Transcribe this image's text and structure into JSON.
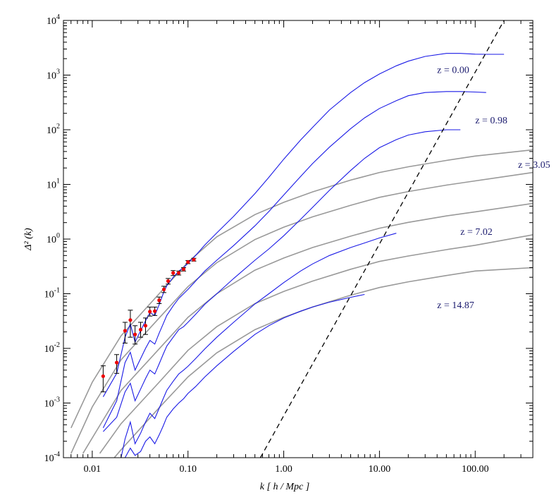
{
  "chart_data": {
    "type": "line",
    "xlabel": "k [ h / Mpc ]",
    "ylabel": "Δ² (k)",
    "xscale": "log",
    "yscale": "log",
    "xlim": [
      0.005,
      400
    ],
    "ylim": [
      0.0001,
      10000
    ],
    "x_tick_labels": [
      {
        "value": 0.01,
        "label": "0.01"
      },
      {
        "value": 0.1,
        "label": "0.10"
      },
      {
        "value": 1,
        "label": "1.00"
      },
      {
        "value": 10,
        "label": "10.00"
      },
      {
        "value": 100,
        "label": "100.00"
      }
    ],
    "y_tick_labels": [
      {
        "value": 0.0001,
        "mantissa": "10",
        "exp": "-4"
      },
      {
        "value": 0.001,
        "mantissa": "10",
        "exp": "-3"
      },
      {
        "value": 0.01,
        "mantissa": "10",
        "exp": "-2"
      },
      {
        "value": 0.1,
        "mantissa": "10",
        "exp": "-1"
      },
      {
        "value": 1,
        "mantissa": "10",
        "exp": "0"
      },
      {
        "value": 10,
        "mantissa": "10",
        "exp": "1"
      },
      {
        "value": 100,
        "mantissa": "10",
        "exp": "2"
      },
      {
        "value": 1000,
        "mantissa": "10",
        "exp": "3"
      },
      {
        "value": 10000,
        "mantissa": "10",
        "exp": "4"
      }
    ],
    "grid": false,
    "colors": {
      "simulation": "#1a1ae6",
      "linear": "#999999",
      "observations": "#ee0000",
      "label": "#1a1a6e",
      "nonlinear_scale": "#000000"
    },
    "series_labels": [
      {
        "text": "z =  0.00",
        "x": 40,
        "y": 1100
      },
      {
        "text": "z =  0.98",
        "x": 100,
        "y": 130
      },
      {
        "text": "z =  3.05",
        "x": 280,
        "y": 20
      },
      {
        "text": "z =  7.02",
        "x": 70,
        "y": 1.2
      },
      {
        "text": "z = 14.87",
        "x": 40,
        "y": 0.054
      }
    ],
    "linear_series": [
      {
        "x": [
          0.006,
          0.01,
          0.02,
          0.05,
          0.1,
          0.2,
          0.5,
          1,
          2,
          5,
          10,
          20,
          50,
          100,
          400
        ],
        "y": [
          0.00035,
          0.0024,
          0.017,
          0.1,
          0.38,
          1.1,
          2.8,
          4.7,
          7.3,
          12,
          16.5,
          21,
          27.5,
          33,
          43
        ]
      },
      {
        "x": [
          0.006,
          0.01,
          0.02,
          0.05,
          0.1,
          0.2,
          0.5,
          1,
          2,
          5,
          10,
          20,
          50,
          100,
          400
        ],
        "y": [
          0.00012,
          0.00085,
          0.0062,
          0.036,
          0.135,
          0.37,
          0.98,
          1.65,
          2.55,
          4.15,
          5.8,
          7.4,
          9.7,
          11.6,
          16.5
        ]
      },
      {
        "x": [
          0.008,
          0.01,
          0.02,
          0.05,
          0.1,
          0.2,
          0.5,
          1,
          2,
          5,
          10,
          20,
          50,
          100,
          400
        ],
        "y": [
          0.00012,
          0.00023,
          0.0017,
          0.0098,
          0.037,
          0.1,
          0.27,
          0.45,
          0.7,
          1.13,
          1.58,
          2.02,
          2.65,
          3.15,
          4.5
        ]
      },
      {
        "x": [
          0.012,
          0.02,
          0.05,
          0.1,
          0.2,
          0.5,
          1,
          2,
          5,
          10,
          20,
          50,
          100,
          400
        ],
        "y": [
          0.00012,
          0.00042,
          0.0024,
          0.0092,
          0.025,
          0.066,
          0.11,
          0.17,
          0.28,
          0.39,
          0.49,
          0.64,
          0.77,
          1.2
        ]
      },
      {
        "x": [
          0.017,
          0.02,
          0.05,
          0.1,
          0.2,
          0.5,
          1,
          2,
          5,
          10,
          20,
          50,
          100,
          400
        ],
        "y": [
          0.0001,
          0.00014,
          0.00082,
          0.003,
          0.0083,
          0.022,
          0.037,
          0.057,
          0.094,
          0.13,
          0.165,
          0.215,
          0.26,
          0.3
        ]
      }
    ],
    "simulation_series": [
      {
        "x": [
          0.013,
          0.018,
          0.022,
          0.025,
          0.028,
          0.032,
          0.036,
          0.04,
          0.045,
          0.05,
          0.055,
          0.06,
          0.07,
          0.08,
          0.09,
          0.1,
          0.12,
          0.15,
          0.2,
          0.3,
          0.5,
          0.7,
          1,
          1.5,
          2,
          3,
          5,
          7,
          10,
          15,
          20,
          30,
          50,
          70,
          100,
          130,
          200
        ],
        "y": [
          0.0013,
          0.0035,
          0.016,
          0.028,
          0.013,
          0.021,
          0.032,
          0.045,
          0.04,
          0.063,
          0.1,
          0.14,
          0.2,
          0.26,
          0.3,
          0.36,
          0.5,
          0.78,
          1.3,
          2.6,
          6.8,
          13.5,
          29,
          65,
          110,
          230,
          480,
          730,
          1050,
          1480,
          1800,
          2200,
          2500,
          2500,
          2420,
          2400,
          2400
        ]
      },
      {
        "x": [
          0.013,
          0.018,
          0.022,
          0.025,
          0.028,
          0.032,
          0.036,
          0.04,
          0.045,
          0.05,
          0.055,
          0.06,
          0.07,
          0.08,
          0.09,
          0.1,
          0.12,
          0.15,
          0.2,
          0.3,
          0.5,
          0.7,
          1,
          1.5,
          2,
          3,
          5,
          7,
          10,
          15,
          20,
          30,
          50,
          70,
          100,
          130
        ],
        "y": [
          0.00035,
          0.0011,
          0.0055,
          0.0085,
          0.004,
          0.0065,
          0.01,
          0.014,
          0.012,
          0.019,
          0.028,
          0.04,
          0.06,
          0.082,
          0.1,
          0.12,
          0.17,
          0.26,
          0.41,
          0.76,
          1.75,
          3.2,
          6.4,
          14,
          24,
          48,
          105,
          165,
          245,
          340,
          420,
          480,
          500,
          500,
          490,
          480
        ]
      },
      {
        "x": [
          0.013,
          0.018,
          0.022,
          0.025,
          0.028,
          0.032,
          0.036,
          0.04,
          0.045,
          0.05,
          0.055,
          0.06,
          0.07,
          0.08,
          0.09,
          0.1,
          0.12,
          0.15,
          0.2,
          0.3,
          0.5,
          0.7,
          1,
          1.5,
          2,
          3,
          5,
          7,
          10,
          15,
          20,
          30,
          50,
          70
        ],
        "y": [
          0.0003,
          0.00055,
          0.0016,
          0.0023,
          0.0011,
          0.0018,
          0.0028,
          0.004,
          0.0034,
          0.0052,
          0.0078,
          0.011,
          0.016,
          0.022,
          0.025,
          0.03,
          0.042,
          0.064,
          0.1,
          0.19,
          0.41,
          0.66,
          1.15,
          2.3,
          3.8,
          7.8,
          18,
          30,
          47,
          66,
          80,
          92,
          100,
          100
        ]
      },
      {
        "x": [
          0.02,
          0.022,
          0.025,
          0.028,
          0.032,
          0.036,
          0.04,
          0.045,
          0.05,
          0.055,
          0.06,
          0.07,
          0.08,
          0.09,
          0.1,
          0.12,
          0.15,
          0.2,
          0.3,
          0.5,
          0.7,
          1,
          1.5,
          2,
          3,
          5,
          7,
          10,
          15
        ],
        "y": [
          0.0001,
          0.00022,
          0.00045,
          0.00018,
          0.00028,
          0.00045,
          0.00065,
          0.00052,
          0.0008,
          0.0012,
          0.0017,
          0.0025,
          0.0034,
          0.004,
          0.0047,
          0.0065,
          0.0098,
          0.016,
          0.03,
          0.065,
          0.1,
          0.16,
          0.26,
          0.35,
          0.5,
          0.7,
          0.85,
          1.05,
          1.28
        ]
      },
      {
        "x": [
          0.022,
          0.025,
          0.028,
          0.032,
          0.036,
          0.04,
          0.045,
          0.05,
          0.055,
          0.06,
          0.07,
          0.08,
          0.09,
          0.1,
          0.12,
          0.15,
          0.2,
          0.3,
          0.5,
          0.7,
          1,
          1.5,
          2,
          3,
          5,
          7
        ],
        "y": [
          0.0001,
          0.00015,
          0.00011,
          0.00013,
          0.0002,
          0.00024,
          0.00018,
          0.00026,
          0.00038,
          0.00055,
          0.00078,
          0.001,
          0.0012,
          0.0015,
          0.002,
          0.003,
          0.0048,
          0.0088,
          0.018,
          0.026,
          0.036,
          0.048,
          0.057,
          0.07,
          0.086,
          0.097
        ]
      }
    ],
    "observations": [
      {
        "x": 0.013,
        "y": 0.0031,
        "lo": 0.0016,
        "hi": 0.0048
      },
      {
        "x": 0.018,
        "y": 0.0055,
        "lo": 0.0035,
        "hi": 0.0077
      },
      {
        "x": 0.022,
        "y": 0.021,
        "lo": 0.0125,
        "hi": 0.03
      },
      {
        "x": 0.025,
        "y": 0.033,
        "lo": 0.016,
        "hi": 0.05
      },
      {
        "x": 0.028,
        "y": 0.018,
        "lo": 0.012,
        "hi": 0.026
      },
      {
        "x": 0.032,
        "y": 0.022,
        "lo": 0.016,
        "hi": 0.03
      },
      {
        "x": 0.036,
        "y": 0.026,
        "lo": 0.018,
        "hi": 0.036
      },
      {
        "x": 0.04,
        "y": 0.047,
        "lo": 0.039,
        "hi": 0.057
      },
      {
        "x": 0.045,
        "y": 0.048,
        "lo": 0.04,
        "hi": 0.057
      },
      {
        "x": 0.05,
        "y": 0.076,
        "lo": 0.066,
        "hi": 0.087
      },
      {
        "x": 0.056,
        "y": 0.12,
        "lo": 0.105,
        "hi": 0.137
      },
      {
        "x": 0.062,
        "y": 0.17,
        "lo": 0.15,
        "hi": 0.19
      },
      {
        "x": 0.07,
        "y": 0.24,
        "lo": 0.215,
        "hi": 0.265
      },
      {
        "x": 0.08,
        "y": 0.24,
        "lo": 0.22,
        "hi": 0.26
      },
      {
        "x": 0.09,
        "y": 0.28,
        "lo": 0.26,
        "hi": 0.3
      },
      {
        "x": 0.1,
        "y": 0.38,
        "lo": 0.355,
        "hi": 0.405
      },
      {
        "x": 0.115,
        "y": 0.42,
        "lo": 0.395,
        "hi": 0.445
      }
    ],
    "nonlinear_scale_line": {
      "x": [
        0.57,
        200
      ],
      "y": [
        0.0001,
        10000
      ]
    }
  }
}
